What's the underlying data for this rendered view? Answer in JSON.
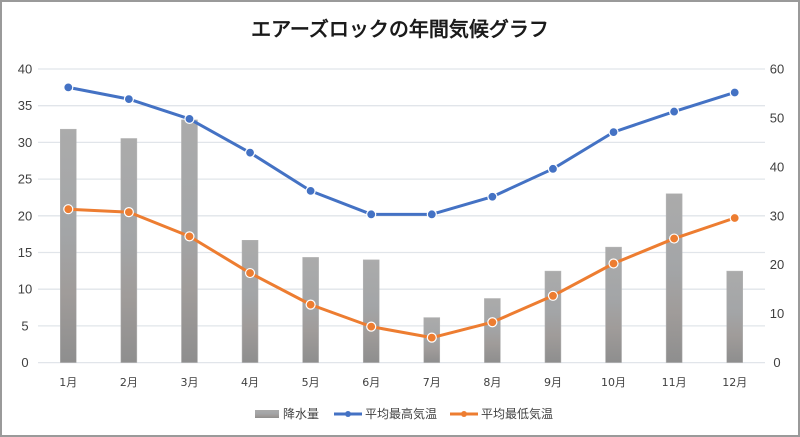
{
  "chart_data": {
    "type": "bar+line",
    "title": "エアーズロックの年間気候グラフ",
    "categories": [
      "1月",
      "2月",
      "3月",
      "4月",
      "5月",
      "6月",
      "7月",
      "8月",
      "9月",
      "10月",
      "11月",
      "12月"
    ],
    "series": [
      {
        "name": "降水量",
        "type": "bar",
        "axis": "right",
        "color": "#a0a0a0",
        "values": [
          47.7,
          45.8,
          49.6,
          25.0,
          21.5,
          21.0,
          9.2,
          13.1,
          18.7,
          23.6,
          34.5,
          18.7
        ]
      },
      {
        "name": "平均最高気温",
        "type": "line",
        "axis": "left",
        "color": "#4472c4",
        "values": [
          37.5,
          35.9,
          33.2,
          28.6,
          23.4,
          20.2,
          20.2,
          22.6,
          26.4,
          31.4,
          34.2,
          36.8
        ]
      },
      {
        "name": "平均最低気温",
        "type": "line",
        "axis": "left",
        "color": "#ed7d31",
        "values": [
          20.9,
          20.5,
          17.2,
          12.2,
          7.9,
          4.9,
          3.4,
          5.5,
          9.1,
          13.5,
          16.9,
          19.7
        ]
      }
    ],
    "left_axis": {
      "ylim": [
        0,
        40
      ],
      "ticks": [
        "0",
        "5",
        "10",
        "15",
        "20",
        "25",
        "30",
        "35",
        "40"
      ]
    },
    "right_axis": {
      "ylim": [
        0,
        60
      ],
      "ticks": [
        "0",
        "10",
        "20",
        "30",
        "40",
        "50",
        "60"
      ]
    },
    "grid": true,
    "legend_position": "bottom",
    "xlabel": "",
    "ylabel": ""
  }
}
